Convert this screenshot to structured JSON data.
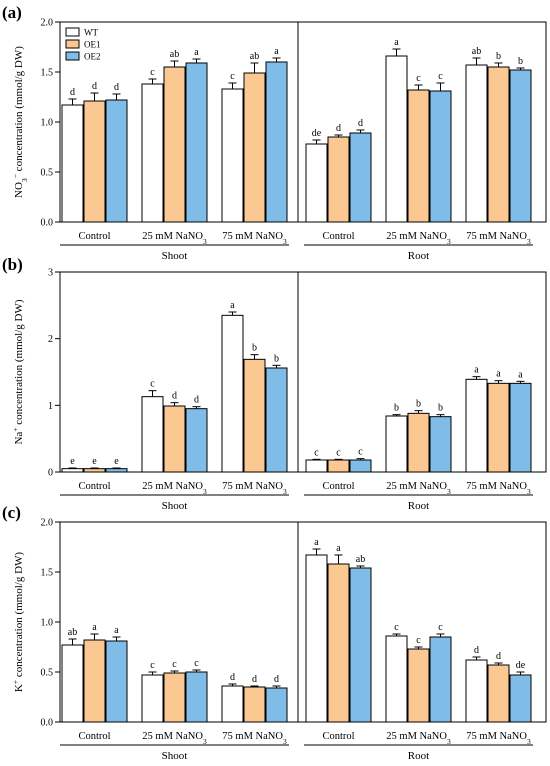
{
  "colors": {
    "WT": "#ffffff",
    "OE1": "#fcc892",
    "OE2": "#7fbce7",
    "outline": "#000000"
  },
  "legend": [
    "WT",
    "OE1",
    "OE2"
  ],
  "categories": [
    "Control",
    "25 mM NaNO3",
    "75 mM NaNO3"
  ],
  "groups": [
    "Shoot",
    "Root"
  ],
  "chart_data": [
    {
      "type": "bar",
      "panel": "(a)",
      "ylabel": "NO3− concentration (mmol/g DW)",
      "ylim": [
        0,
        2.0
      ],
      "yticks": [
        "0.0",
        "0.5",
        "1.0",
        "1.5",
        "2.0"
      ],
      "groups": [
        "Shoot",
        "Root"
      ],
      "categories": [
        "Control",
        "25 mM NaNO3",
        "75 mM NaNO3"
      ],
      "series": [
        {
          "name": "WT",
          "values": [
            [
              1.17,
              1.38,
              1.33
            ],
            [
              0.78,
              1.66,
              1.57
            ]
          ],
          "errors": [
            [
              0.06,
              0.05,
              0.06
            ],
            [
              0.04,
              0.07,
              0.07
            ]
          ],
          "letters": [
            [
              "d",
              "c",
              "c"
            ],
            [
              "de",
              "a",
              "ab"
            ]
          ]
        },
        {
          "name": "OE1",
          "values": [
            [
              1.21,
              1.55,
              1.49
            ],
            [
              0.85,
              1.32,
              1.55
            ]
          ],
          "errors": [
            [
              0.08,
              0.06,
              0.1
            ],
            [
              0.02,
              0.05,
              0.04
            ]
          ],
          "letters": [
            [
              "d",
              "ab",
              "ab"
            ],
            [
              "d",
              "c",
              "b"
            ]
          ]
        },
        {
          "name": "OE2",
          "values": [
            [
              1.22,
              1.59,
              1.6
            ],
            [
              0.89,
              1.31,
              1.52
            ]
          ],
          "errors": [
            [
              0.06,
              0.04,
              0.04
            ],
            [
              0.03,
              0.08,
              0.02
            ]
          ],
          "letters": [
            [
              "d",
              "a",
              "a"
            ],
            [
              "d",
              "c",
              "b"
            ]
          ]
        }
      ]
    },
    {
      "type": "bar",
      "panel": "(b)",
      "ylabel": "Na+ concentration (mmol/g DW)",
      "ylim": [
        0,
        3
      ],
      "yticks": [
        "0",
        "1",
        "2",
        "3"
      ],
      "groups": [
        "Shoot",
        "Root"
      ],
      "categories": [
        "Control",
        "25 mM NaNO3",
        "75 mM NaNO3"
      ],
      "series": [
        {
          "name": "WT",
          "values": [
            [
              0.05,
              1.13,
              2.35
            ],
            [
              0.18,
              0.84,
              1.39
            ]
          ],
          "errors": [
            [
              0.01,
              0.09,
              0.05
            ],
            [
              0.01,
              0.02,
              0.04
            ]
          ],
          "letters": [
            [
              "e",
              "c",
              "a"
            ],
            [
              "c",
              "b",
              "a"
            ]
          ]
        },
        {
          "name": "OE1",
          "values": [
            [
              0.05,
              0.99,
              1.69
            ],
            [
              0.18,
              0.88,
              1.33
            ]
          ],
          "errors": [
            [
              0.01,
              0.05,
              0.07
            ],
            [
              0.01,
              0.04,
              0.04
            ]
          ],
          "letters": [
            [
              "e",
              "d",
              "b"
            ],
            [
              "c",
              "b",
              "a"
            ]
          ]
        },
        {
          "name": "OE2",
          "values": [
            [
              0.05,
              0.95,
              1.56
            ],
            [
              0.18,
              0.83,
              1.33
            ]
          ],
          "errors": [
            [
              0.01,
              0.03,
              0.04
            ],
            [
              0.02,
              0.03,
              0.03
            ]
          ],
          "letters": [
            [
              "e",
              "d",
              "b"
            ],
            [
              "c",
              "b",
              "a"
            ]
          ]
        }
      ]
    },
    {
      "type": "bar",
      "panel": "(c)",
      "ylabel": "K+ concentration (mmol/g DW)",
      "ylim": [
        0,
        2.0
      ],
      "yticks": [
        "0.0",
        "0.5",
        "1.0",
        "1.5",
        "2.0"
      ],
      "groups": [
        "Shoot",
        "Root"
      ],
      "categories": [
        "Control",
        "25 mM NaNO3",
        "75 mM NaNO3"
      ],
      "series": [
        {
          "name": "WT",
          "values": [
            [
              0.77,
              0.47,
              0.36
            ],
            [
              1.67,
              0.86,
              0.62
            ]
          ],
          "errors": [
            [
              0.06,
              0.03,
              0.02
            ],
            [
              0.06,
              0.02,
              0.03
            ]
          ],
          "letters": [
            [
              "ab",
              "c",
              "d"
            ],
            [
              "a",
              "c",
              "d"
            ]
          ]
        },
        {
          "name": "OE1",
          "values": [
            [
              0.82,
              0.49,
              0.35
            ],
            [
              1.58,
              0.73,
              0.57
            ]
          ],
          "errors": [
            [
              0.06,
              0.02,
              0.01
            ],
            [
              0.09,
              0.02,
              0.02
            ]
          ],
          "letters": [
            [
              "a",
              "c",
              "d"
            ],
            [
              "a",
              "c",
              "d"
            ]
          ]
        },
        {
          "name": "OE2",
          "values": [
            [
              0.81,
              0.5,
              0.34
            ],
            [
              1.54,
              0.85,
              0.47
            ]
          ],
          "errors": [
            [
              0.04,
              0.02,
              0.02
            ],
            [
              0.02,
              0.03,
              0.03
            ]
          ],
          "letters": [
            [
              "a",
              "c",
              "d"
            ],
            [
              "ab",
              "c",
              "de"
            ]
          ]
        }
      ]
    }
  ]
}
